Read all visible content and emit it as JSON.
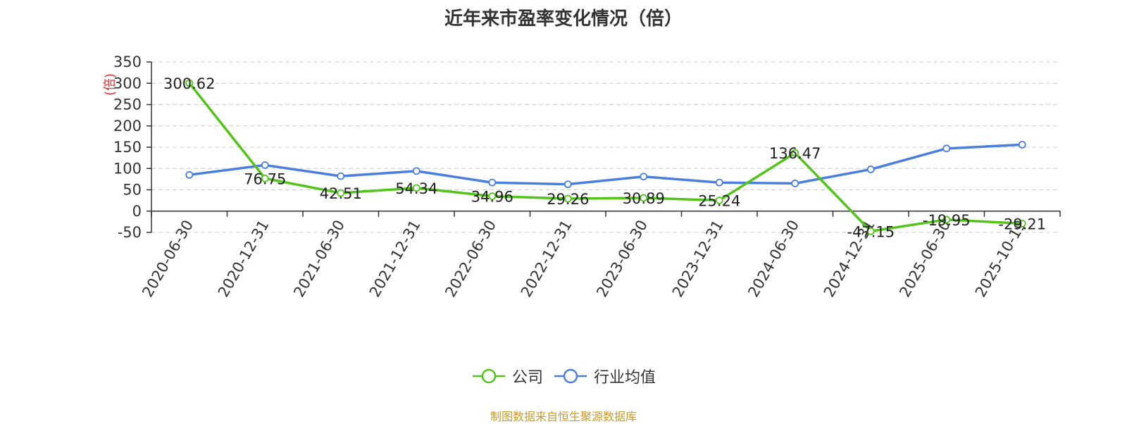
{
  "chart_data": {
    "type": "line",
    "title": "近年来市盈率变化情况（倍）",
    "ylabel": "(倍)",
    "xlabel": "",
    "ylim": [
      -50,
      350
    ],
    "yticks": [
      -50,
      0,
      50,
      100,
      150,
      200,
      250,
      300,
      350
    ],
    "grid": true,
    "legend_position": "bottom-center",
    "categories": [
      "2020-06-30",
      "2020-12-31",
      "2021-06-30",
      "2021-12-31",
      "2022-06-30",
      "2022-12-31",
      "2023-06-30",
      "2023-12-31",
      "2024-06-30",
      "2024-12-31",
      "2025-06-30",
      "2025-10-19"
    ],
    "series": [
      {
        "name": "公司",
        "color": "#52c41a",
        "values": [
          300.62,
          76.75,
          42.51,
          54.34,
          34.96,
          29.26,
          30.89,
          25.24,
          136.47,
          -47.15,
          -19.95,
          -29.21
        ],
        "show_labels": true
      },
      {
        "name": "行业均值",
        "color": "#4a7fdd",
        "values": [
          85,
          108,
          82,
          94,
          67,
          63,
          81,
          67,
          65,
          98,
          147,
          156
        ],
        "show_labels": false
      }
    ]
  },
  "footer": {
    "text": "制图数据来自恒生聚源数据库",
    "color": "#c89a2a"
  },
  "colors": {
    "ylabel": "#e0302f",
    "axis": "#333333",
    "grid": "#cccccc"
  }
}
